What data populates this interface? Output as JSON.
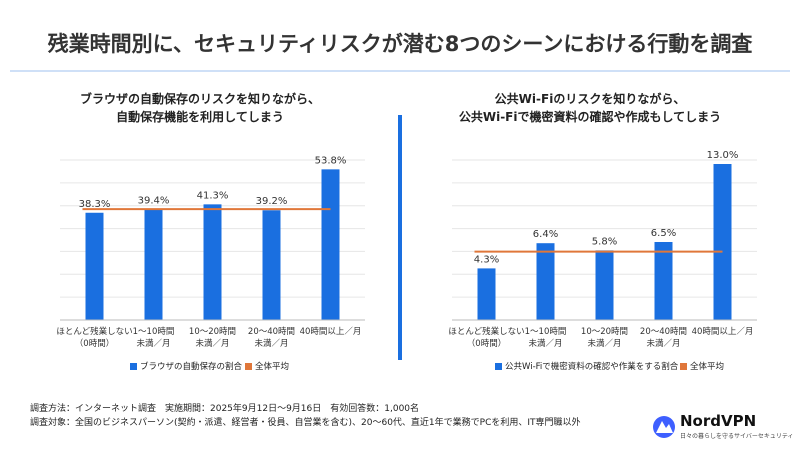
{
  "title": "残業時間別に、セキュリティリスクが潜む8つのシーンにおける行動を調査",
  "chart_data": [
    {
      "type": "bar",
      "title": "ブラウザの自動保存のリスクを知りながら、\n自動保存機能を利用してしまう",
      "categories": [
        "ほとんど残業しない\n（0時間）",
        "1～10時間\n未満／月",
        "10～20時間\n未満／月",
        "20～40時間\n未満／月",
        "40時間以上／月"
      ],
      "series": [
        {
          "name": "ブラウザの自動保存の割合",
          "color": "#1a6fe0",
          "values": [
            38.3,
            39.4,
            41.3,
            39.2,
            53.8
          ],
          "value_labels": [
            "38.3%",
            "39.4%",
            "41.3%",
            "39.2%",
            "53.8%"
          ]
        }
      ],
      "average": {
        "name": "全体平均",
        "color": "#e0773a",
        "value": 39.6
      },
      "ylim": [
        0,
        60
      ]
    },
    {
      "type": "bar",
      "title": "公共Wi-Fiのリスクを知りながら、\n公共Wi-Fiで機密資料の確認や作成もしてしまう",
      "categories": [
        "ほとんど残業しない\n（0時間）",
        "1～10時間\n未満／月",
        "10～20時間\n未満／月",
        "20～40時間\n未満／月",
        "40時間以上／月"
      ],
      "series": [
        {
          "name": "公共Wi-Fiで機密資料の確認や作業をする割合",
          "color": "#1a6fe0",
          "values": [
            4.3,
            6.4,
            5.8,
            6.5,
            13.0
          ],
          "value_labels": [
            "4.3%",
            "6.4%",
            "5.8%",
            "6.5%",
            "13.0%"
          ]
        }
      ],
      "average": {
        "name": "全体平均",
        "color": "#e0773a",
        "value": 5.7
      },
      "ylim": [
        0,
        14
      ]
    }
  ],
  "footer": {
    "notes": [
      "調査方法：インターネット調査　実施期間：2025年9月12日～9月16日　有効回答数：1,000名",
      "調査対象：全国のビジネスパーソン(契約・派遣、経営者・役員、自営業を含む)、20～60代、直近1年で業務でPCを利用、IT専門職以外"
    ],
    "logo": "NordVPN",
    "tagline": "日々の暮らしを守るサイバーセキュリティ"
  }
}
